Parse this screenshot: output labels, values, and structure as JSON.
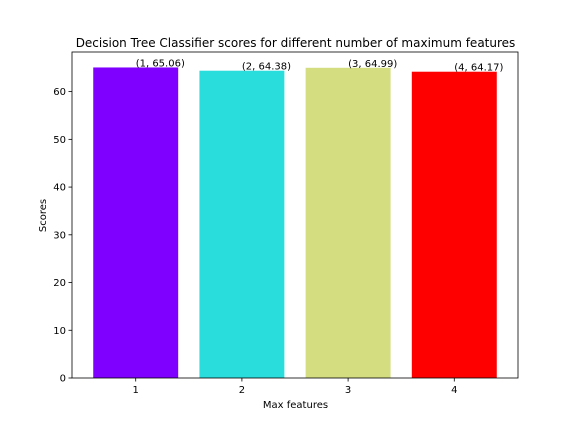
{
  "chart_data": {
    "type": "bar",
    "title": "Decision Tree Classifier scores for different number of maximum features",
    "xlabel": "Max features",
    "ylabel": "Scores",
    "categories": [
      "1",
      "2",
      "3",
      "4"
    ],
    "values": [
      65.06,
      64.38,
      64.99,
      64.17
    ],
    "bar_labels": [
      "(1, 65.06)",
      "(2, 64.38)",
      "(3, 64.99)",
      "(4, 64.17)"
    ],
    "colors": [
      "#8000ff",
      "#2adddd",
      "#d4dd80",
      "#ff0000"
    ],
    "ylim": [
      0,
      68.3
    ],
    "yticks": [
      0,
      10,
      20,
      30,
      40,
      50,
      60
    ],
    "grid": false,
    "legend": "none"
  }
}
